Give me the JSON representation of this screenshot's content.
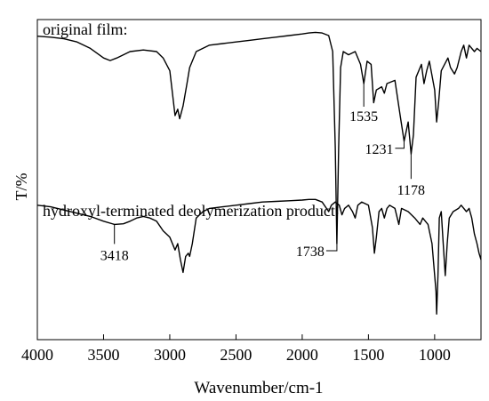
{
  "chart_data": {
    "type": "line",
    "xlabel": "Wavenumber/cm-1",
    "ylabel": "T/%",
    "xlim": [
      4000,
      650
    ],
    "x_reversed": true,
    "x_ticks": [
      4000,
      3500,
      3000,
      2500,
      2000,
      1500,
      1000
    ],
    "grid": false,
    "series": [
      {
        "name": "original film:",
        "points": [
          [
            4000,
            0.948
          ],
          [
            3900,
            0.945
          ],
          [
            3800,
            0.94
          ],
          [
            3700,
            0.93
          ],
          [
            3600,
            0.91
          ],
          [
            3500,
            0.88
          ],
          [
            3450,
            0.872
          ],
          [
            3400,
            0.88
          ],
          [
            3300,
            0.9
          ],
          [
            3200,
            0.905
          ],
          [
            3100,
            0.9
          ],
          [
            3050,
            0.88
          ],
          [
            3000,
            0.84
          ],
          [
            2960,
            0.7
          ],
          [
            2940,
            0.72
          ],
          [
            2925,
            0.69
          ],
          [
            2900,
            0.73
          ],
          [
            2870,
            0.8
          ],
          [
            2850,
            0.85
          ],
          [
            2800,
            0.9
          ],
          [
            2700,
            0.92
          ],
          [
            2600,
            0.925
          ],
          [
            2500,
            0.93
          ],
          [
            2400,
            0.935
          ],
          [
            2300,
            0.94
          ],
          [
            2200,
            0.945
          ],
          [
            2100,
            0.95
          ],
          [
            2000,
            0.955
          ],
          [
            1950,
            0.958
          ],
          [
            1900,
            0.96
          ],
          [
            1850,
            0.958
          ],
          [
            1800,
            0.95
          ],
          [
            1770,
            0.9
          ],
          [
            1750,
            0.6
          ],
          [
            1738,
            0.3
          ],
          [
            1725,
            0.6
          ],
          [
            1710,
            0.85
          ],
          [
            1690,
            0.9
          ],
          [
            1650,
            0.89
          ],
          [
            1600,
            0.9
          ],
          [
            1560,
            0.86
          ],
          [
            1535,
            0.8
          ],
          [
            1510,
            0.87
          ],
          [
            1480,
            0.86
          ],
          [
            1460,
            0.74
          ],
          [
            1440,
            0.78
          ],
          [
            1400,
            0.79
          ],
          [
            1380,
            0.77
          ],
          [
            1360,
            0.8
          ],
          [
            1300,
            0.81
          ],
          [
            1260,
            0.7
          ],
          [
            1231,
            0.62
          ],
          [
            1200,
            0.68
          ],
          [
            1178,
            0.58
          ],
          [
            1160,
            0.64
          ],
          [
            1140,
            0.82
          ],
          [
            1100,
            0.86
          ],
          [
            1080,
            0.8
          ],
          [
            1060,
            0.84
          ],
          [
            1040,
            0.87
          ],
          [
            1000,
            0.78
          ],
          [
            985,
            0.68
          ],
          [
            970,
            0.74
          ],
          [
            950,
            0.84
          ],
          [
            900,
            0.88
          ],
          [
            880,
            0.85
          ],
          [
            850,
            0.83
          ],
          [
            830,
            0.85
          ],
          [
            800,
            0.9
          ],
          [
            780,
            0.92
          ],
          [
            760,
            0.88
          ],
          [
            740,
            0.92
          ],
          [
            700,
            0.9
          ],
          [
            680,
            0.91
          ],
          [
            650,
            0.9
          ]
        ]
      },
      {
        "name": "hydroxyl-terminated deolymerization product∶",
        "points": [
          [
            4000,
            0.42
          ],
          [
            3900,
            0.415
          ],
          [
            3800,
            0.405
          ],
          [
            3700,
            0.395
          ],
          [
            3600,
            0.385
          ],
          [
            3500,
            0.37
          ],
          [
            3418,
            0.36
          ],
          [
            3350,
            0.362
          ],
          [
            3300,
            0.37
          ],
          [
            3250,
            0.38
          ],
          [
            3200,
            0.385
          ],
          [
            3150,
            0.38
          ],
          [
            3100,
            0.37
          ],
          [
            3050,
            0.34
          ],
          [
            3000,
            0.32
          ],
          [
            2960,
            0.28
          ],
          [
            2940,
            0.3
          ],
          [
            2920,
            0.25
          ],
          [
            2900,
            0.21
          ],
          [
            2880,
            0.26
          ],
          [
            2860,
            0.27
          ],
          [
            2850,
            0.26
          ],
          [
            2830,
            0.3
          ],
          [
            2800,
            0.38
          ],
          [
            2750,
            0.4
          ],
          [
            2700,
            0.41
          ],
          [
            2600,
            0.415
          ],
          [
            2500,
            0.42
          ],
          [
            2400,
            0.425
          ],
          [
            2300,
            0.43
          ],
          [
            2200,
            0.432
          ],
          [
            2100,
            0.434
          ],
          [
            2000,
            0.436
          ],
          [
            1950,
            0.438
          ],
          [
            1900,
            0.438
          ],
          [
            1850,
            0.43
          ],
          [
            1800,
            0.4
          ],
          [
            1780,
            0.42
          ],
          [
            1750,
            0.43
          ],
          [
            1720,
            0.42
          ],
          [
            1700,
            0.39
          ],
          [
            1680,
            0.41
          ],
          [
            1650,
            0.42
          ],
          [
            1620,
            0.4
          ],
          [
            1600,
            0.38
          ],
          [
            1580,
            0.42
          ],
          [
            1550,
            0.43
          ],
          [
            1500,
            0.42
          ],
          [
            1470,
            0.35
          ],
          [
            1455,
            0.27
          ],
          [
            1440,
            0.32
          ],
          [
            1420,
            0.4
          ],
          [
            1400,
            0.41
          ],
          [
            1380,
            0.38
          ],
          [
            1360,
            0.41
          ],
          [
            1340,
            0.42
          ],
          [
            1300,
            0.41
          ],
          [
            1270,
            0.36
          ],
          [
            1250,
            0.41
          ],
          [
            1200,
            0.4
          ],
          [
            1150,
            0.38
          ],
          [
            1110,
            0.36
          ],
          [
            1090,
            0.38
          ],
          [
            1050,
            0.36
          ],
          [
            1020,
            0.3
          ],
          [
            1000,
            0.2
          ],
          [
            990,
            0.15
          ],
          [
            985,
            0.08
          ],
          [
            975,
            0.2
          ],
          [
            965,
            0.38
          ],
          [
            950,
            0.4
          ],
          [
            935,
            0.3
          ],
          [
            920,
            0.2
          ],
          [
            905,
            0.3
          ],
          [
            890,
            0.38
          ],
          [
            860,
            0.4
          ],
          [
            820,
            0.41
          ],
          [
            800,
            0.42
          ],
          [
            760,
            0.4
          ],
          [
            740,
            0.41
          ],
          [
            720,
            0.38
          ],
          [
            700,
            0.33
          ],
          [
            680,
            0.3
          ],
          [
            665,
            0.27
          ],
          [
            650,
            0.25
          ]
        ]
      }
    ],
    "annotations": [
      {
        "label": "1535",
        "series": 0,
        "x": 1535
      },
      {
        "label": "1738",
        "series": 0,
        "x": 1738
      },
      {
        "label": "1231",
        "series": 0,
        "x": 1231
      },
      {
        "label": "1178",
        "series": 0,
        "x": 1178
      },
      {
        "label": "3418",
        "series": 1,
        "x": 3418
      }
    ]
  }
}
